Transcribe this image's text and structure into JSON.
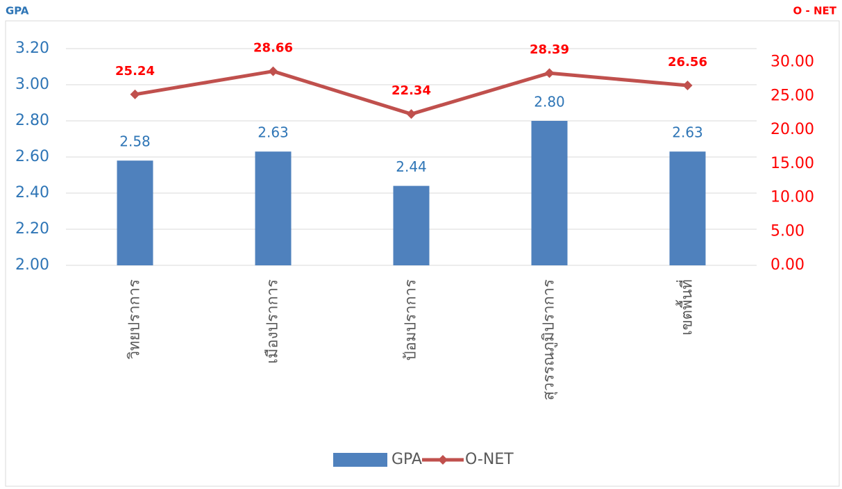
{
  "chart_data": {
    "type": "bar",
    "y_axis_label": "GPA",
    "y2_axis_label": "O - NET",
    "categories": [
      "วิทยปราการ",
      "เมืองปราการ",
      "ป้อมปราการ",
      "สุวรรณภูมิปราการ",
      "เขตพื้นที่"
    ],
    "series": [
      {
        "name": "GPA",
        "type": "bar",
        "color": "#4f81bd",
        "values": [
          2.58,
          2.63,
          2.44,
          2.8,
          2.63
        ],
        "value_labels": [
          "2.58",
          "2.63",
          "2.44",
          "2.80",
          "2.63"
        ]
      },
      {
        "name": "O-NET",
        "type": "line",
        "axis": "y2",
        "color": "#c0504d",
        "values": [
          25.24,
          28.66,
          22.34,
          28.39,
          26.56
        ]
      }
    ],
    "ylim": [
      2,
      3.2
    ],
    "yticks": [
      {
        "value": 2,
        "label": "2.00"
      },
      {
        "value": 2.2,
        "label": "2.20"
      },
      {
        "value": 2.4,
        "label": "2.40"
      },
      {
        "value": 2.6,
        "label": "2.60"
      },
      {
        "value": 2.8,
        "label": "2.80"
      },
      {
        "value": 3,
        "label": "3.00"
      },
      {
        "value": 3.2,
        "label": "3.20"
      }
    ],
    "y2lim": [
      0,
      32
    ],
    "y2ticks": [
      {
        "value": 0,
        "label": "0.00"
      },
      {
        "value": 5,
        "label": "5.00"
      },
      {
        "value": 10,
        "label": "10.00"
      },
      {
        "value": 15,
        "label": "15.00"
      },
      {
        "value": 20,
        "label": "20.00"
      },
      {
        "value": 25,
        "label": "25.00"
      },
      {
        "value": 30,
        "label": "30.00"
      }
    ],
    "grid": true,
    "legend": "bottom"
  }
}
